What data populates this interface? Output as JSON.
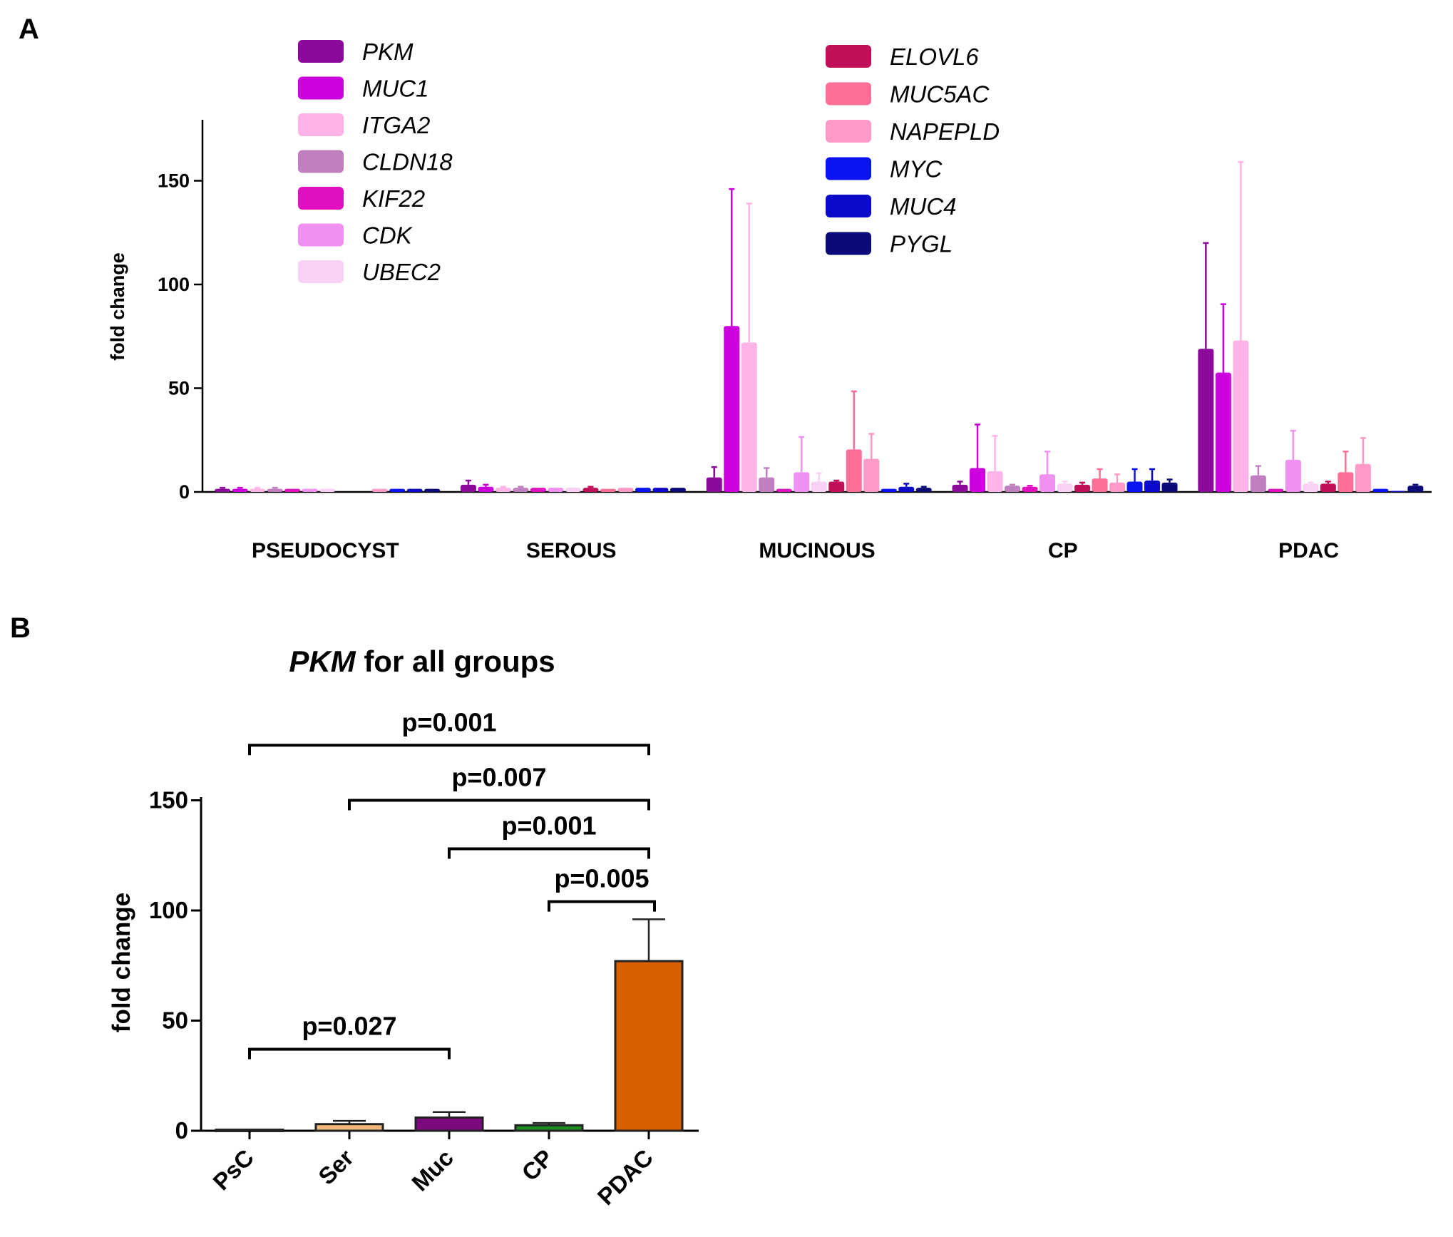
{
  "panels": {
    "a_label": "A",
    "b_label": "B"
  },
  "chart_data": [
    {
      "type": "bar",
      "panel": "A",
      "title": "",
      "xlabel": "",
      "ylabel": "fold change",
      "ylim": [
        0,
        180
      ],
      "yticks": [
        "0",
        "50",
        "100",
        "150"
      ],
      "categories": [
        "PSEUDOCYST",
        "SEROUS",
        "MUCINOUS",
        "CP",
        "PDAC"
      ],
      "legend_position": "top",
      "series": [
        {
          "name": "PKM",
          "color": "#8B0A9A",
          "values": [
            1.5,
            3.5,
            7,
            3.5,
            69
          ],
          "errors": [
            0.5,
            2,
            5,
            1.5,
            51
          ]
        },
        {
          "name": "MUC1",
          "color": "#CC00DD",
          "values": [
            1.5,
            2.5,
            80,
            11.5,
            57.5
          ],
          "errors": [
            0.5,
            1,
            66,
            21,
            33
          ]
        },
        {
          "name": "ITGA2",
          "color": "#FFB3E6",
          "values": [
            1.5,
            2,
            72,
            10,
            73
          ],
          "errors": [
            0.5,
            0.5,
            67,
            17,
            86
          ]
        },
        {
          "name": "CLDN18",
          "color": "#C080C0",
          "values": [
            1.5,
            2,
            7,
            3,
            8
          ],
          "errors": [
            0.5,
            0.5,
            4.5,
            0.5,
            4.5
          ]
        },
        {
          "name": "KIF22",
          "color": "#E010C0",
          "values": [
            1.5,
            2,
            1.5,
            2.5,
            1.5
          ],
          "errors": [
            0.3,
            0.3,
            0.3,
            0.5,
            0.3
          ]
        },
        {
          "name": "CDK",
          "color": "#F090F0",
          "values": [
            1.5,
            2,
            9.5,
            8.5,
            15.5
          ],
          "errors": [
            0.3,
            0.3,
            17,
            11,
            14
          ]
        },
        {
          "name": "UBEC2",
          "color": "#FAD0F5",
          "values": [
            1.5,
            2,
            5,
            4,
            4
          ],
          "errors": [
            0.3,
            0.3,
            4,
            1,
            0.5
          ]
        },
        {
          "name": "ELOVL6",
          "color": "#C0105A",
          "values": [
            0,
            2,
            5,
            3.5,
            4
          ],
          "errors": [
            0,
            0.5,
            0.5,
            1,
            1
          ]
        },
        {
          "name": "MUC5AC",
          "color": "#FF6E96",
          "values": [
            0,
            1.5,
            20.5,
            6.5,
            9.5
          ],
          "errors": [
            0,
            0.3,
            28,
            4.5,
            10
          ]
        },
        {
          "name": "NAPEPLD",
          "color": "#FF9AC8",
          "values": [
            1.5,
            2,
            16,
            4.5,
            13.5
          ],
          "errors": [
            0.3,
            0.3,
            12,
            4,
            12.5
          ]
        },
        {
          "name": "MYC",
          "color": "#0A14F0",
          "values": [
            1.5,
            2,
            1.5,
            5,
            1.5
          ],
          "errors": [
            0.3,
            0.3,
            0.3,
            6,
            0.3
          ]
        },
        {
          "name": "MUC4",
          "color": "#0A0AC8",
          "values": [
            1.5,
            2,
            2.5,
            5.5,
            0.5
          ],
          "errors": [
            0.3,
            0.3,
            1.5,
            5.5,
            0.2
          ]
        },
        {
          "name": "PYGL",
          "color": "#0A0A78",
          "values": [
            1.5,
            2,
            2,
            4.5,
            3
          ],
          "errors": [
            0.3,
            0.3,
            0.5,
            1.5,
            0.5
          ]
        }
      ]
    },
    {
      "type": "bar",
      "panel": "B",
      "title_italic": "PKM",
      "title_rest": " for all groups",
      "xlabel": "",
      "ylabel": "fold change",
      "ylim": [
        0,
        150
      ],
      "yticks": [
        "0",
        "50",
        "100",
        "150"
      ],
      "categories": [
        "PsC",
        "Ser",
        "Muc",
        "CP",
        "PDAC"
      ],
      "values": [
        0.5,
        3,
        6,
        2.5,
        77
      ],
      "errors": [
        0.1,
        1.5,
        2.5,
        1,
        19
      ],
      "colors": [
        "#000000",
        "#F5B67A",
        "#7B0A7E",
        "#1E8E1E",
        "#D95F02"
      ],
      "comparisons": [
        {
          "label": "p=0.001",
          "from": 0,
          "to": 4,
          "level": 175
        },
        {
          "label": "p=0.007",
          "from": 1,
          "to": 4,
          "level": 150
        },
        {
          "label": "p=0.001",
          "from": 2,
          "to": 4,
          "level": 128
        },
        {
          "label": "p=0.005",
          "from": 3,
          "to": 4,
          "level": 104
        },
        {
          "label": "p=0.027",
          "from": 0,
          "to": 2,
          "level": 37
        }
      ]
    }
  ]
}
